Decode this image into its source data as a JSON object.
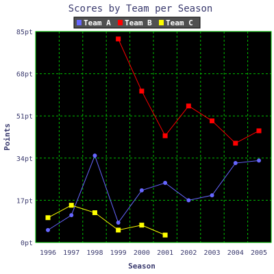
{
  "chart_data": {
    "type": "line",
    "title": "Scores by Team per Season",
    "xlabel": "Season",
    "ylabel": "Points",
    "categories": [
      "1996",
      "1997",
      "1998",
      "1999",
      "2000",
      "2001",
      "2002",
      "2003",
      "2004",
      "2005"
    ],
    "y_ticks": [
      "0pt",
      "17pt",
      "34pt",
      "51pt",
      "68pt",
      "85pt"
    ],
    "ylim": [
      0,
      85
    ],
    "grid": true,
    "legend_position": "top",
    "background": "#000000",
    "grid_color": "#00c000",
    "series": [
      {
        "name": "Team A",
        "color": "#6666ff",
        "marker": "circle",
        "values": [
          5,
          11,
          35,
          8,
          21,
          24,
          17,
          19,
          32,
          33
        ]
      },
      {
        "name": "Team B",
        "color": "#ff0000",
        "marker": "square",
        "values": [
          null,
          null,
          null,
          82,
          61,
          43,
          55,
          49,
          40,
          45
        ]
      },
      {
        "name": "Team C",
        "color": "#ffff00",
        "marker": "square",
        "values": [
          10,
          15,
          12,
          5,
          7,
          3,
          null,
          null,
          null,
          null
        ]
      }
    ]
  }
}
